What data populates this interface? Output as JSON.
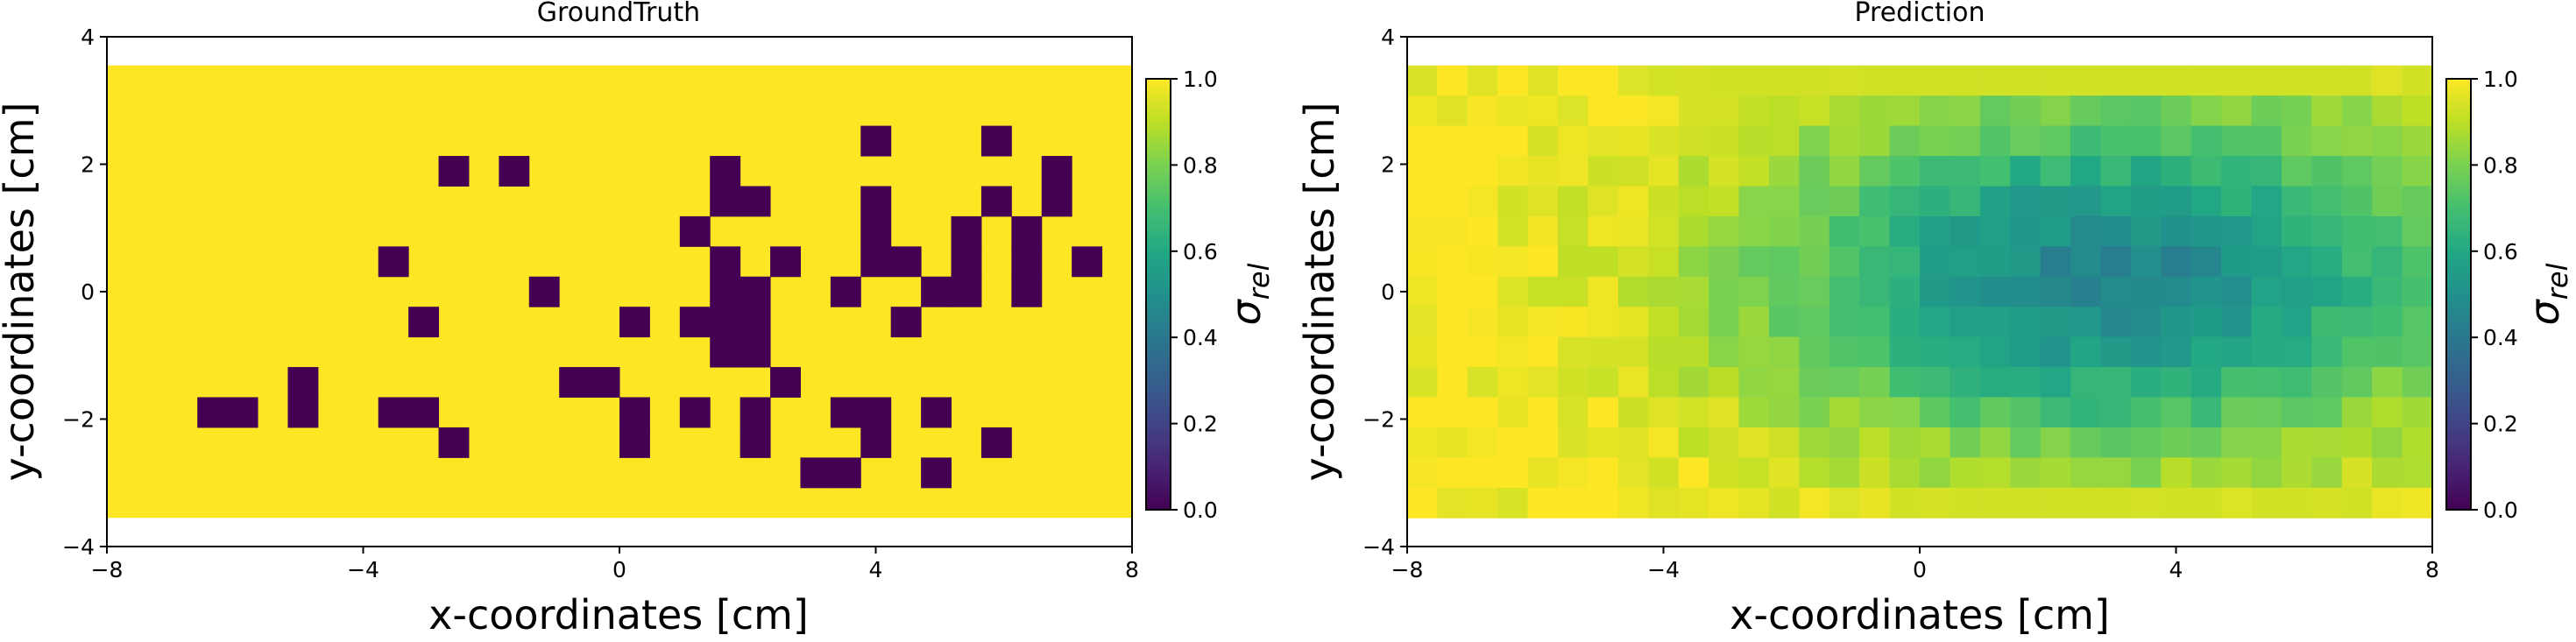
{
  "figure": {
    "colormap": "viridis",
    "colormap_stops": [
      "#440154",
      "#482475",
      "#414487",
      "#355f8d",
      "#2a788e",
      "#21918c",
      "#22a884",
      "#44bf70",
      "#7ad151",
      "#bddf26",
      "#fde725"
    ]
  },
  "chart_data": [
    {
      "type": "heatmap",
      "title": "GroundTruth",
      "xlabel": "x-coordinates [cm]",
      "ylabel": "y-coordinates [cm]",
      "xlim": [
        -8,
        8
      ],
      "ylim": [
        -4,
        4
      ],
      "xticks": [
        -8,
        -4,
        0,
        4,
        8
      ],
      "xtick_labels": [
        "−8",
        "−4",
        "0",
        "4",
        "8"
      ],
      "yticks": [
        -4,
        -2,
        0,
        2,
        4
      ],
      "ytick_labels": [
        "−4",
        "−2",
        "0",
        "2",
        "4"
      ],
      "extent": {
        "x": [
          -8,
          8
        ],
        "y": [
          -3.55,
          3.55
        ]
      },
      "grid_cols": 34,
      "grid_rows": 15,
      "value_range": [
        0,
        1
      ],
      "background_value": 1.0,
      "zero_cells_row_col": [
        [
          2,
          25
        ],
        [
          2,
          29
        ],
        [
          3,
          11
        ],
        [
          3,
          13
        ],
        [
          3,
          20
        ],
        [
          3,
          31
        ],
        [
          4,
          20
        ],
        [
          4,
          21
        ],
        [
          4,
          25
        ],
        [
          4,
          29
        ],
        [
          4,
          31
        ],
        [
          5,
          19
        ],
        [
          5,
          25
        ],
        [
          5,
          28
        ],
        [
          5,
          30
        ],
        [
          6,
          9
        ],
        [
          6,
          20
        ],
        [
          6,
          22
        ],
        [
          6,
          25
        ],
        [
          6,
          26
        ],
        [
          6,
          28
        ],
        [
          6,
          30
        ],
        [
          6,
          32
        ],
        [
          7,
          14
        ],
        [
          7,
          20
        ],
        [
          7,
          21
        ],
        [
          7,
          24
        ],
        [
          7,
          27
        ],
        [
          7,
          28
        ],
        [
          7,
          30
        ],
        [
          8,
          10
        ],
        [
          8,
          17
        ],
        [
          8,
          19
        ],
        [
          8,
          20
        ],
        [
          8,
          21
        ],
        [
          8,
          26
        ],
        [
          9,
          20
        ],
        [
          9,
          21
        ],
        [
          10,
          6
        ],
        [
          10,
          15
        ],
        [
          10,
          16
        ],
        [
          10,
          22
        ],
        [
          11,
          3
        ],
        [
          11,
          4
        ],
        [
          11,
          6
        ],
        [
          11,
          9
        ],
        [
          11,
          10
        ],
        [
          11,
          17
        ],
        [
          11,
          19
        ],
        [
          11,
          21
        ],
        [
          11,
          24
        ],
        [
          11,
          25
        ],
        [
          11,
          27
        ],
        [
          12,
          11
        ],
        [
          12,
          17
        ],
        [
          12,
          21
        ],
        [
          12,
          25
        ],
        [
          12,
          29
        ],
        [
          13,
          23
        ],
        [
          13,
          24
        ],
        [
          13,
          27
        ]
      ],
      "colorbar": {
        "label": "σ",
        "label_sub": "rel",
        "ticks": [
          0.0,
          0.2,
          0.4,
          0.6,
          0.8,
          1.0
        ],
        "tick_labels": [
          "0.0",
          "0.2",
          "0.4",
          "0.6",
          "0.8",
          "1.0"
        ]
      }
    },
    {
      "type": "heatmap",
      "title": "Prediction",
      "xlabel": "x-coordinates [cm]",
      "ylabel": "y-coordinates [cm]",
      "xlim": [
        -8,
        8
      ],
      "ylim": [
        -4,
        4
      ],
      "xticks": [
        -8,
        -4,
        0,
        4,
        8
      ],
      "xtick_labels": [
        "−8",
        "−4",
        "0",
        "4",
        "8"
      ],
      "yticks": [
        -4,
        -2,
        0,
        2,
        4
      ],
      "ytick_labels": [
        "−4",
        "−2",
        "0",
        "2",
        "4"
      ],
      "extent": {
        "x": [
          -8,
          8
        ],
        "y": [
          -3.55,
          3.55
        ]
      },
      "grid_cols": 34,
      "grid_rows": 15,
      "value_range": [
        0,
        1
      ],
      "center_x": 3.0,
      "center_y": 0.2,
      "min_value": 0.45,
      "colorbar": {
        "label": "σ",
        "label_sub": "rel",
        "ticks": [
          0.0,
          0.2,
          0.4,
          0.6,
          0.8,
          1.0
        ],
        "tick_labels": [
          "0.0",
          "0.2",
          "0.4",
          "0.6",
          "0.8",
          "1.0"
        ]
      }
    }
  ]
}
